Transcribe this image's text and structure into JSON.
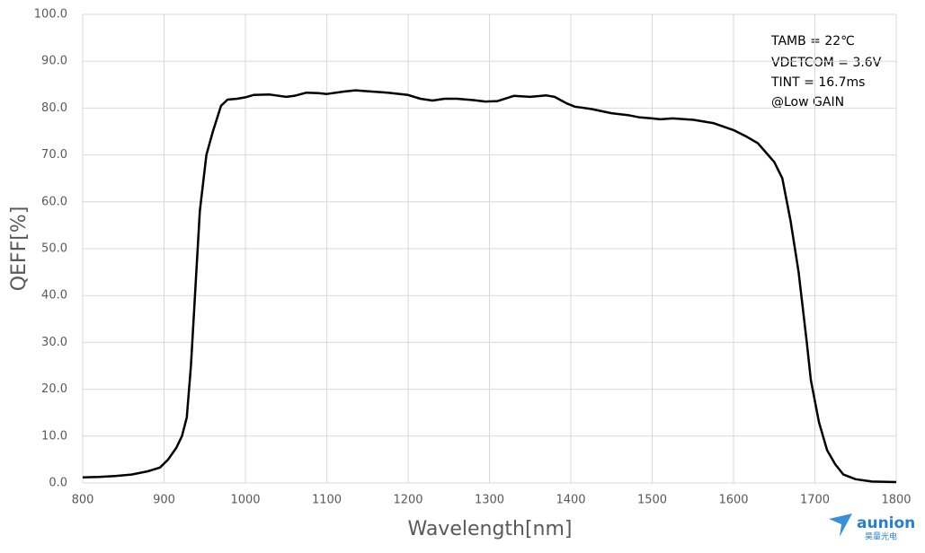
{
  "chart_data": {
    "type": "line",
    "x_label": "Wavelength[nm]",
    "y_label": "QEFF[%]",
    "xlim": [
      800,
      1800
    ],
    "xticks": [
      800,
      900,
      1000,
      1100,
      1200,
      1300,
      1400,
      1500,
      1600,
      1700,
      1800
    ],
    "ylim": [
      0,
      100
    ],
    "yticks": [
      {
        "value": 0,
        "label": "0.0"
      },
      {
        "value": 10,
        "label": "10.0"
      },
      {
        "value": 20,
        "label": "20.0"
      },
      {
        "value": 30,
        "label": "30.0"
      },
      {
        "value": 40,
        "label": "40.0"
      },
      {
        "value": 50,
        "label": "50.0"
      },
      {
        "value": 60,
        "label": "60.0"
      },
      {
        "value": 70,
        "label": "70.0"
      },
      {
        "value": 80,
        "label": "80.0"
      },
      {
        "value": 90,
        "label": "90.0"
      },
      {
        "value": 100,
        "label": "100.0"
      }
    ],
    "grid": true,
    "annotations": [
      "TAMB = 22℃",
      "VDETCOM = 3.6V",
      "TINT = 16.7ms",
      "@Low GAIN"
    ],
    "logo": [
      "aunion",
      "昊量光电"
    ],
    "series": [
      {
        "color": "#000000",
        "x": [
          800,
          820,
          840,
          860,
          880,
          895,
          905,
          915,
          922,
          928,
          933,
          938,
          944,
          952,
          960,
          970,
          978,
          990,
          1000,
          1010,
          1030,
          1050,
          1060,
          1075,
          1090,
          1100,
          1120,
          1135,
          1150,
          1175,
          1200,
          1215,
          1230,
          1245,
          1260,
          1280,
          1295,
          1310,
          1330,
          1350,
          1370,
          1380,
          1395,
          1405,
          1425,
          1450,
          1470,
          1485,
          1500,
          1510,
          1525,
          1550,
          1575,
          1600,
          1615,
          1630,
          1640,
          1650,
          1660,
          1670,
          1680,
          1690,
          1695,
          1705,
          1715,
          1725,
          1735,
          1750,
          1770,
          1800
        ],
        "values": [
          1.2,
          1.3,
          1.5,
          1.8,
          2.5,
          3.3,
          5,
          7.5,
          10,
          14,
          25,
          40,
          58,
          70,
          75,
          80.5,
          81.8,
          82,
          82.3,
          82.8,
          82.9,
          82.4,
          82.6,
          83.3,
          83.2,
          83,
          83.5,
          83.8,
          83.6,
          83.3,
          82.8,
          82,
          81.6,
          82,
          82,
          81.7,
          81.4,
          81.5,
          82.6,
          82.4,
          82.7,
          82.4,
          81,
          80.3,
          79.8,
          78.9,
          78.5,
          78,
          77.8,
          77.6,
          77.8,
          77.5,
          76.8,
          75.3,
          74,
          72.5,
          70.5,
          68.5,
          65,
          56,
          45,
          30,
          22,
          13,
          7,
          4,
          1.8,
          0.8,
          0.3,
          0.2
        ]
      }
    ]
  }
}
